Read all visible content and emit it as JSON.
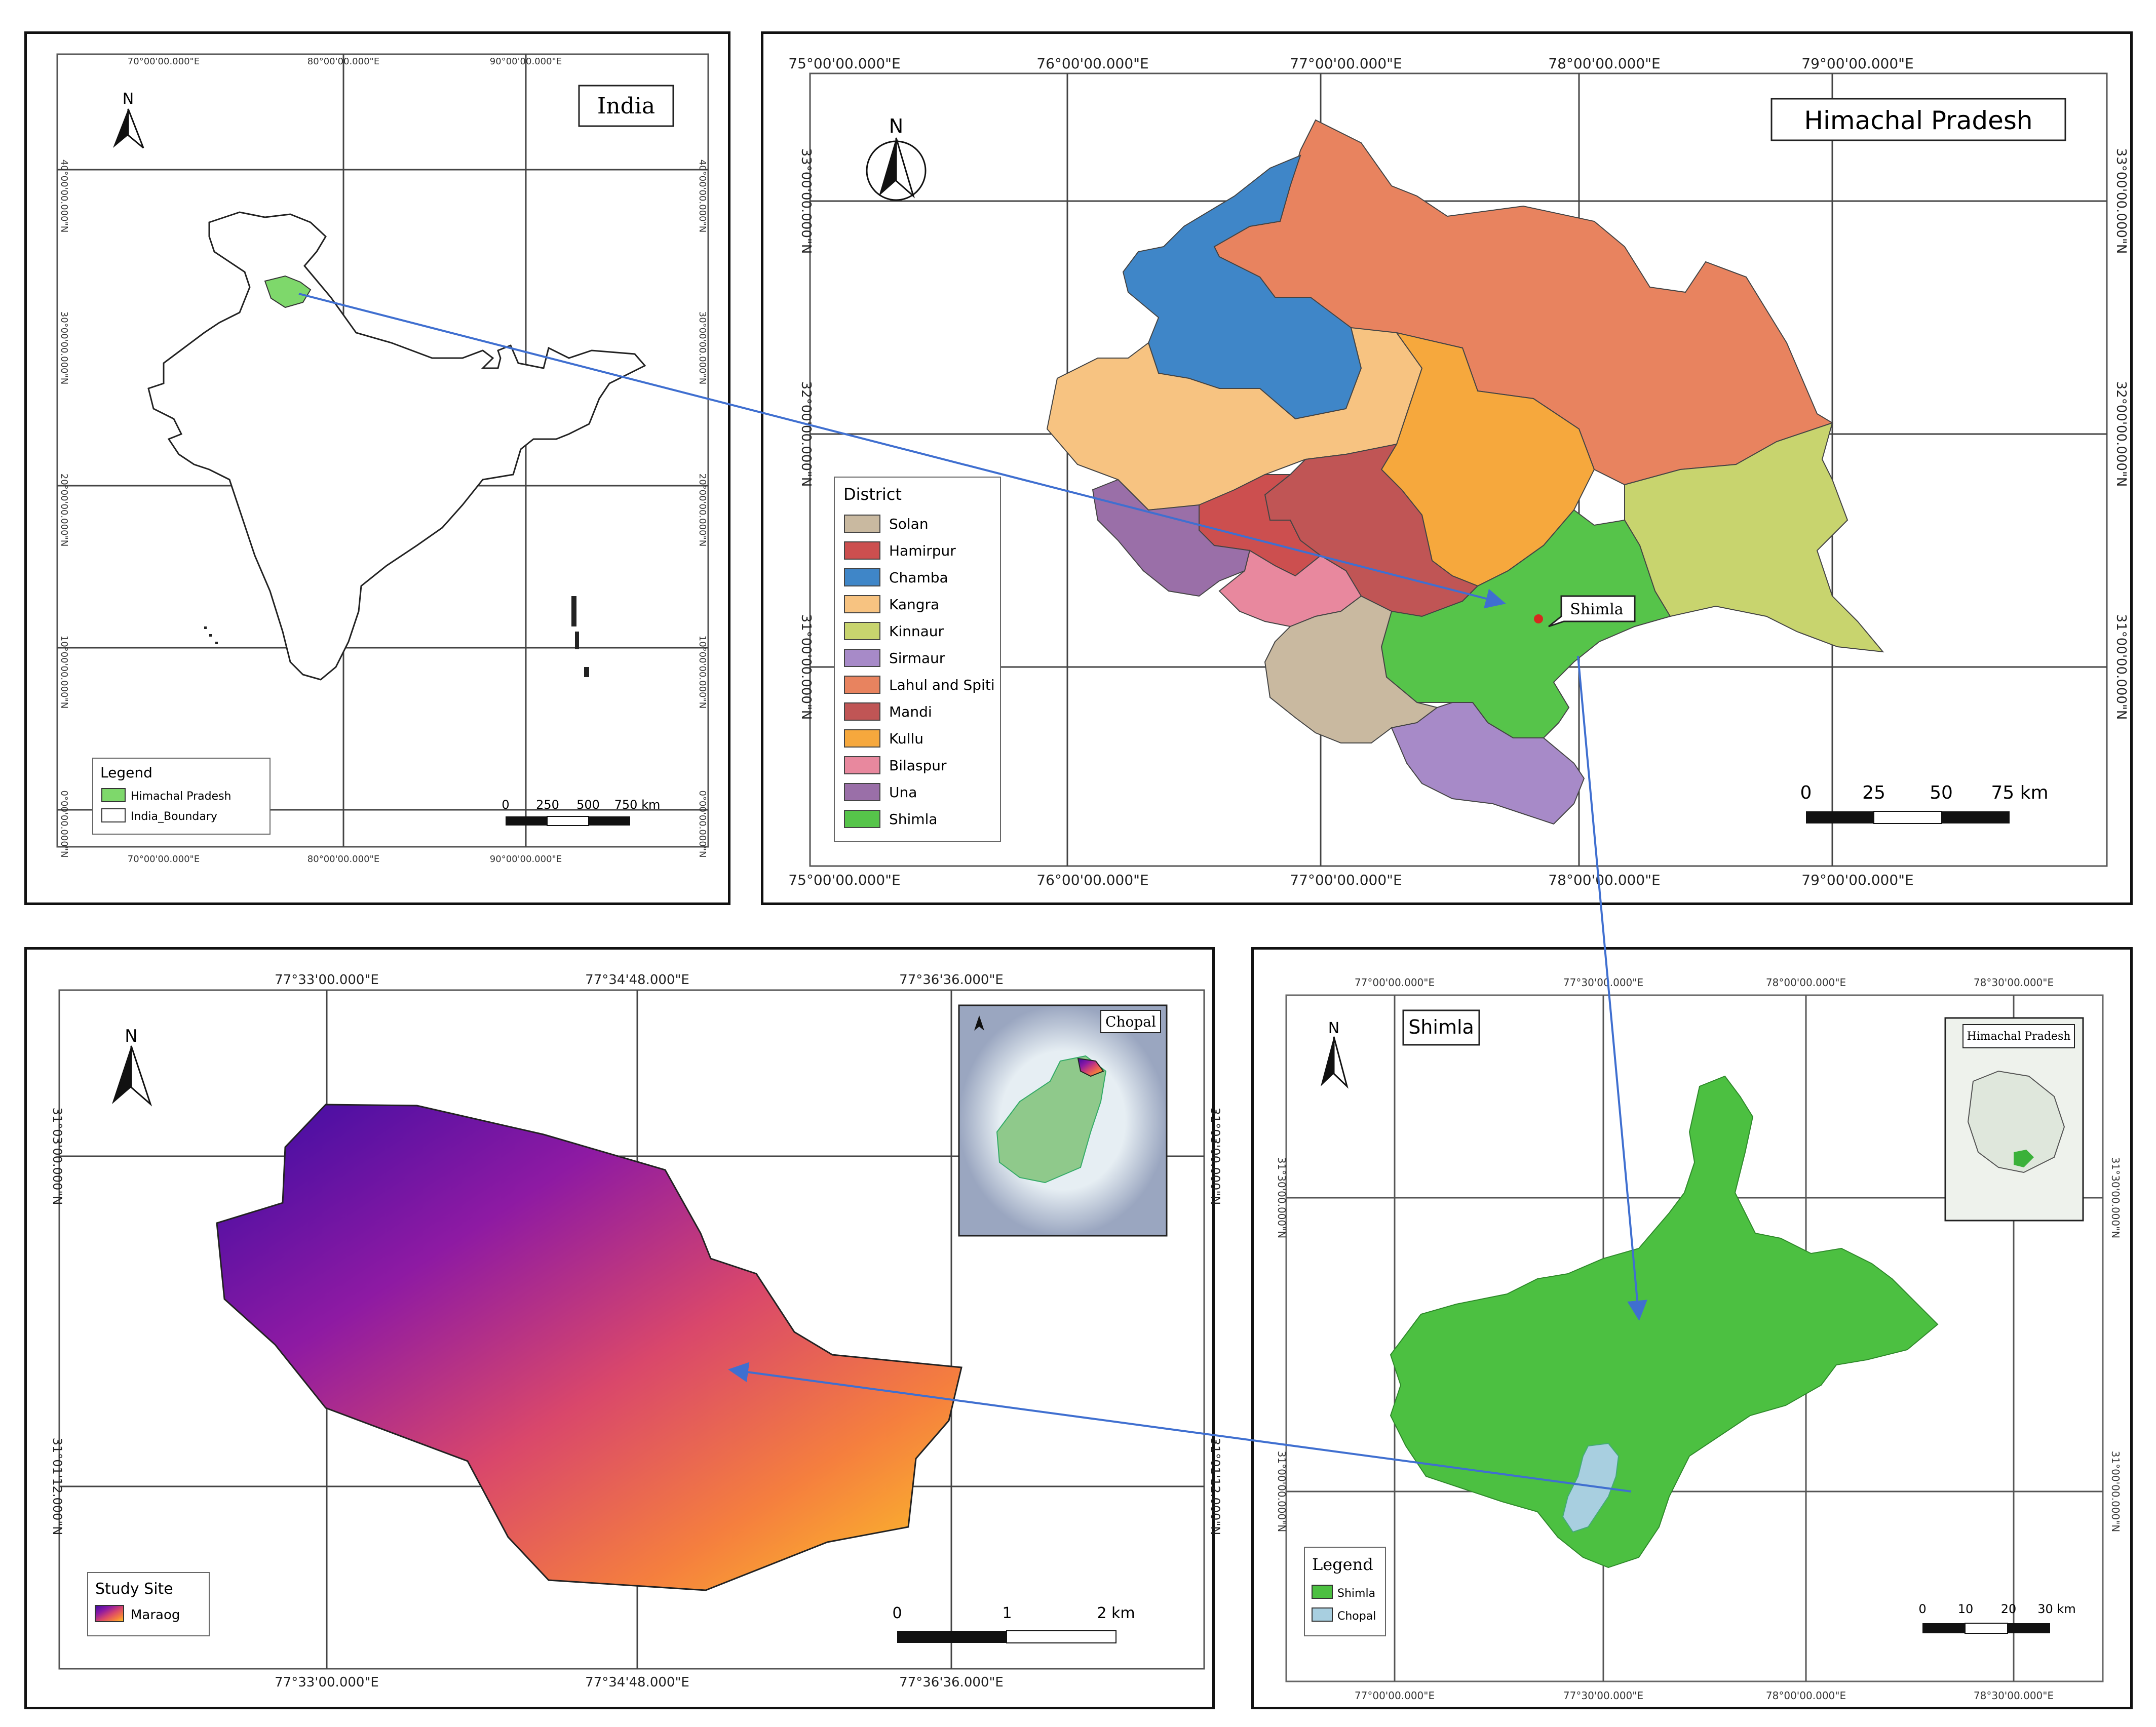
{
  "panels": {
    "india": {
      "title": "India",
      "north": "N",
      "top_ticks": [
        "70°00'00.000\"E",
        "80°00'00.000\"E",
        "90°00'00.000\"E"
      ],
      "bottom_ticks": [
        "70°00'00.000\"E",
        "80°00'00.000\"E",
        "90°00'00.000\"E"
      ],
      "left_ticks": [
        "40°00'00.000\"N",
        "30°00'00.000\"N",
        "20°00'00.000\"N",
        "10°00'00.000\"N",
        "0°00'00.000\"N"
      ],
      "right_ticks": [
        "40°00'00.000\"N",
        "30°00'00.000\"N",
        "20°00'00.000\"N",
        "10°00'00.000\"N",
        "0°00'00.000\"N"
      ],
      "legend": {
        "title": "Legend",
        "items": [
          {
            "label": "Himachal Pradesh",
            "color": "#7ed86b"
          },
          {
            "label": "India_Boundary",
            "color": "#ffffff"
          }
        ]
      },
      "scale": {
        "labels": [
          "0",
          "250",
          "500",
          "750 km"
        ]
      }
    },
    "hp": {
      "title": "Himachal Pradesh",
      "north": "N",
      "top_ticks": [
        "75°00'00.000\"E",
        "76°00'00.000\"E",
        "77°00'00.000\"E",
        "78°00'00.000\"E",
        "79°00'00.000\"E"
      ],
      "bottom_ticks": [
        "75°00'00.000\"E",
        "76°00'00.000\"E",
        "77°00'00.000\"E",
        "78°00'00.000\"E",
        "79°00'00.000\"E"
      ],
      "left_ticks": [
        "33°00'00.000\"N",
        "32°00'00.000\"N",
        "31°00'00.000\"N"
      ],
      "right_ticks": [
        "33°00'00.000\"N",
        "32°00'00.000\"N",
        "31°00'00.000\"N"
      ],
      "legend_title": "District",
      "districts": [
        {
          "name": "Solan",
          "color": "#c9b9a0"
        },
        {
          "name": "Hamirpur",
          "color": "#cc4f4f"
        },
        {
          "name": "Chamba",
          "color": "#3f86c8"
        },
        {
          "name": "Kangra",
          "color": "#f7c381"
        },
        {
          "name": "Kinnaur",
          "color": "#c8d46e"
        },
        {
          "name": "Sirmaur",
          "color": "#a78ac8"
        },
        {
          "name": "Lahul and Spiti",
          "color": "#e8835f"
        },
        {
          "name": "Mandi",
          "color": "#c05555"
        },
        {
          "name": "Kullu",
          "color": "#f6a83d"
        },
        {
          "name": "Bilaspur",
          "color": "#e8889e"
        },
        {
          "name": "Una",
          "color": "#9a6fa8"
        },
        {
          "name": "Shimla",
          "color": "#56c44a"
        }
      ],
      "callout": "Shimla",
      "scale": {
        "labels": [
          "0",
          "25",
          "50",
          "75 km"
        ]
      }
    },
    "study": {
      "north": "N",
      "top_ticks": [
        "77°33'00.000\"E",
        "77°34'48.000\"E",
        "77°36'36.000\"E"
      ],
      "bottom_ticks": [
        "77°33'00.000\"E",
        "77°34'48.000\"E",
        "77°36'36.000\"E"
      ],
      "left_ticks": [
        "31°03'00.000\"N",
        "31°01'12.000\"N"
      ],
      "right_ticks": [
        "31°03'00.000\"N",
        "31°01'12.000\"N"
      ],
      "inset_title": "Chopal",
      "legend": {
        "title": "Study Site",
        "item": "Maraog"
      },
      "scale": {
        "labels": [
          "0",
          "1",
          "2 km"
        ]
      },
      "gradient": [
        "#3a0ca3",
        "#8e1aa3",
        "#d9476b",
        "#f57f3e",
        "#fdc926"
      ]
    },
    "shimla": {
      "title": "Shimla",
      "north": "N",
      "top_ticks": [
        "77°00'00.000\"E",
        "77°30'00.000\"E",
        "78°00'00.000\"E",
        "78°30'00.000\"E"
      ],
      "bottom_ticks": [
        "77°00'00.000\"E",
        "77°30'00.000\"E",
        "78°00'00.000\"E",
        "78°30'00.000\"E"
      ],
      "left_ticks": [
        "31°30'00.000\"N",
        "31°00'00.000\"N"
      ],
      "right_ticks": [
        "31°30'00.000\"N",
        "31°00'00.000\"N"
      ],
      "inset_title": "Himachal Pradesh",
      "legend": {
        "title": "Legend",
        "items": [
          {
            "label": "Shimla",
            "color": "#4cc041"
          },
          {
            "label": "Chopal",
            "color": "#a8cfe0"
          }
        ]
      },
      "scale": {
        "labels": [
          "0",
          "10",
          "20",
          "30 km"
        ]
      }
    }
  },
  "colors": {
    "arrow": "#3f6fd0",
    "grid": "#444444",
    "frame": "#111111"
  }
}
